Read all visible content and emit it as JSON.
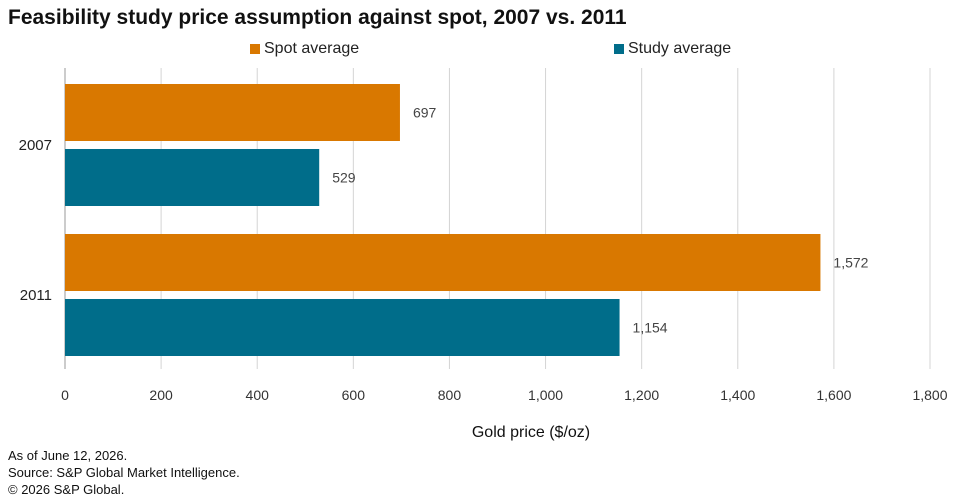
{
  "title": "Feasibility study price assumption against spot, 2007 vs. 2011",
  "colors": {
    "spot": "#D97800",
    "study": "#006D8A",
    "grid": "#D4D4D4",
    "axis": "#999999"
  },
  "legend": [
    {
      "label": "Spot average",
      "color": "#D97800"
    },
    {
      "label": "Study average",
      "color": "#006D8A"
    }
  ],
  "chart_data": {
    "type": "bar",
    "orientation": "horizontal",
    "categories": [
      "2007",
      "2011"
    ],
    "series": [
      {
        "name": "Spot average",
        "values": [
          697,
          1572
        ],
        "value_labels": [
          "697",
          "1,572"
        ]
      },
      {
        "name": "Study average",
        "values": [
          529,
          1154
        ],
        "value_labels": [
          "529",
          "1,154"
        ]
      }
    ],
    "xlabel": "Gold price ($/oz)",
    "ylabel": "",
    "xlim": [
      0,
      1800
    ],
    "xticks": [
      0,
      200,
      400,
      600,
      800,
      1000,
      1200,
      1400,
      1600,
      1800
    ],
    "xtick_labels": [
      "0",
      "200",
      "400",
      "600",
      "800",
      "1,000",
      "1,200",
      "1,400",
      "1,600",
      "1,800"
    ],
    "grid": true,
    "legend_position": "top"
  },
  "footer": {
    "line1": "As of June 12, 2026.",
    "line2": "Source: S&P Global Market Intelligence.",
    "line3": "© 2026 S&P Global."
  }
}
